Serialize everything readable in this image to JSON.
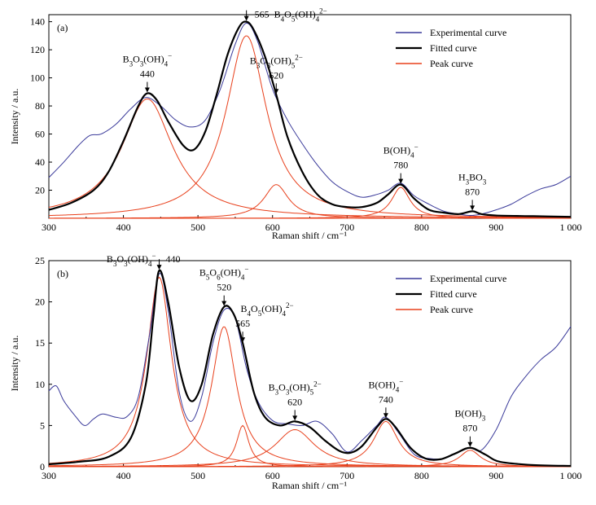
{
  "chart_data": [
    {
      "type": "line",
      "panel_label": "(a)",
      "xlabel": "Raman shift / cm⁻¹",
      "ylabel": "Intensity / a.u.",
      "xlim": [
        300,
        1000
      ],
      "ylim": [
        0,
        145
      ],
      "xticks": [
        300,
        400,
        500,
        600,
        700,
        800,
        900,
        1000
      ],
      "xtick_labels": [
        "300",
        "400",
        "500",
        "600",
        "700",
        "800",
        "900",
        "1 000"
      ],
      "yticks": [
        20,
        40,
        60,
        80,
        100,
        120,
        140
      ],
      "ytick_labels": [
        "20",
        "40",
        "60",
        "80",
        "100",
        "120",
        "140"
      ],
      "legend": {
        "position": "top-right",
        "entries": [
          {
            "label": "Experimental curve",
            "color": "#3a3a9a"
          },
          {
            "label": "Fitted curve",
            "color": "#000000"
          },
          {
            "label": "Peak curve",
            "color": "#e8401c"
          }
        ]
      },
      "peaks": [
        {
          "center": 432,
          "height": 85,
          "width": 42
        },
        {
          "center": 565,
          "height": 130,
          "width": 33
        },
        {
          "center": 605,
          "height": 24,
          "width": 20
        },
        {
          "center": 772,
          "height": 22,
          "width": 15
        },
        {
          "center": 868,
          "height": 2,
          "width": 4
        }
      ],
      "series": [
        {
          "name": "Experimental curve",
          "color": "#3a3a9a",
          "x": [
            300,
            320,
            340,
            355,
            370,
            390,
            410,
            430,
            450,
            470,
            490,
            510,
            530,
            550,
            565,
            580,
            600,
            620,
            640,
            660,
            680,
            700,
            720,
            740,
            755,
            772,
            790,
            810,
            830,
            850,
            865,
            880,
            900,
            920,
            940,
            960,
            980,
            1000
          ],
          "y": [
            29,
            40,
            52,
            59,
            60,
            67,
            78,
            86,
            80,
            70,
            65,
            70,
            92,
            124,
            139,
            126,
            92,
            70,
            53,
            38,
            26,
            19,
            15,
            17,
            20,
            25,
            16,
            10,
            5,
            3,
            2,
            3,
            6,
            10,
            16,
            21,
            24,
            30
          ]
        },
        {
          "name": "Fitted curve",
          "color": "#000000",
          "x": [
            300,
            330,
            360,
            380,
            400,
            420,
            432,
            445,
            460,
            480,
            495,
            510,
            525,
            540,
            555,
            565,
            575,
            590,
            605,
            620,
            640,
            660,
            680,
            700,
            720,
            740,
            755,
            772,
            790,
            810,
            830,
            850,
            868,
            880,
            900,
            950,
            1000
          ],
          "y": [
            6,
            11,
            20,
            33,
            55,
            80,
            89,
            84,
            69,
            52,
            49,
            62,
            88,
            117,
            136,
            140,
            134,
            115,
            88,
            58,
            33,
            17,
            10,
            8,
            8,
            11,
            17,
            24,
            14,
            6,
            4,
            3,
            5,
            3,
            2,
            1.5,
            1
          ]
        },
        {
          "name": "Peak curve",
          "color": "#e8401c",
          "is_group": true,
          "components": [
            "p1",
            "p2",
            "p3",
            "p4",
            "p5"
          ]
        }
      ],
      "annotations": [
        {
          "species_html": "B<tspan baseline-shift='sub' font-size='9'>3</tspan>O<tspan baseline-shift='sub' font-size='9'>3</tspan>(OH)<tspan baseline-shift='sub' font-size='9'>4</tspan><tspan baseline-shift='super' font-size='9'>−</tspan>",
          "species": "B3O3(OH)4−",
          "value": "440",
          "x": 432,
          "y": 89
        },
        {
          "species": "B4O5(OH)4 2−",
          "value": "565",
          "x": 565,
          "y": 140
        },
        {
          "species": "B3O3(OH)5 2−",
          "value": "620",
          "x": 605,
          "y": 88
        },
        {
          "species": "B(OH)4−",
          "value": "780",
          "x": 772,
          "y": 24
        },
        {
          "species": "H3BO3",
          "value": "870",
          "x": 868,
          "y": 5
        }
      ]
    },
    {
      "type": "line",
      "panel_label": "(b)",
      "xlabel": "Raman shift / cm⁻¹",
      "ylabel": "Intensity / a.u.",
      "xlim": [
        300,
        1000
      ],
      "ylim": [
        0,
        25
      ],
      "xticks": [
        300,
        400,
        500,
        600,
        700,
        800,
        900,
        1000
      ],
      "xtick_labels": [
        "300",
        "400",
        "500",
        "600",
        "700",
        "800",
        "900",
        "1 000"
      ],
      "yticks": [
        0,
        5,
        10,
        15,
        20,
        25
      ],
      "ytick_labels": [
        "0",
        "5",
        "10",
        "15",
        "20",
        "25"
      ],
      "legend": {
        "position": "top-right",
        "entries": [
          {
            "label": "Experimental curve",
            "color": "#3a3a9a"
          },
          {
            "label": "Fitted curve",
            "color": "#000000"
          },
          {
            "label": "Peak curve",
            "color": "#e8401c"
          }
        ]
      },
      "peaks": [
        {
          "center": 448,
          "height": 23,
          "width": 20
        },
        {
          "center": 535,
          "height": 17,
          "width": 20
        },
        {
          "center": 560,
          "height": 5,
          "width": 10
        },
        {
          "center": 630,
          "height": 4.5,
          "width": 32
        },
        {
          "center": 752,
          "height": 5.5,
          "width": 20
        },
        {
          "center": 865,
          "height": 2,
          "width": 17
        }
      ],
      "series": [
        {
          "name": "Experimental curve",
          "color": "#3a3a9a",
          "x": [
            300,
            310,
            320,
            335,
            348,
            360,
            372,
            390,
            405,
            420,
            435,
            448,
            460,
            475,
            490,
            505,
            520,
            535,
            550,
            565,
            580,
            600,
            620,
            640,
            660,
            680,
            700,
            720,
            740,
            752,
            770,
            790,
            810,
            830,
            850,
            865,
            880,
            900,
            920,
            940,
            960,
            980,
            1000
          ],
          "y": [
            9.2,
            9.8,
            8.0,
            6.2,
            5.0,
            5.8,
            6.4,
            6.0,
            6.1,
            8.5,
            16.0,
            23.4,
            19.0,
            9.0,
            5.5,
            8.5,
            15.0,
            19.0,
            18.0,
            12.0,
            8.0,
            5.6,
            5.2,
            5.0,
            5.5,
            4.0,
            1.8,
            3.2,
            5.0,
            6.0,
            4.0,
            1.5,
            1.0,
            1.0,
            1.8,
            2.3,
            2.0,
            4.5,
            8.5,
            11.0,
            13.0,
            14.5,
            17.0
          ]
        },
        {
          "name": "Fitted curve",
          "color": "#000000",
          "x": [
            300,
            340,
            380,
            410,
            430,
            440,
            448,
            460,
            475,
            490,
            505,
            520,
            535,
            548,
            560,
            575,
            590,
            610,
            630,
            650,
            670,
            690,
            705,
            720,
            740,
            752,
            765,
            785,
            805,
            825,
            845,
            865,
            885,
            905,
            950,
            1000
          ],
          "y": [
            0.3,
            0.6,
            1.2,
            3.5,
            10.0,
            18.0,
            23.8,
            20.0,
            12.0,
            8.0,
            10.0,
            16.0,
            19.4,
            18.5,
            15.0,
            9.0,
            6.0,
            5.0,
            5.5,
            4.8,
            3.2,
            1.9,
            1.7,
            2.5,
            4.8,
            5.8,
            4.8,
            2.3,
            1.0,
            0.9,
            1.6,
            2.3,
            1.5,
            0.6,
            0.2,
            0.1
          ]
        },
        {
          "name": "Peak curve",
          "color": "#e8401c",
          "is_group": true,
          "components": [
            "p1",
            "p2",
            "p3",
            "p4",
            "p5",
            "p6"
          ]
        }
      ],
      "annotations": [
        {
          "species": "B3O3(OH)4−",
          "value": "440",
          "x": 448,
          "y": 23.8
        },
        {
          "species": "B5O6(OH)4−",
          "value": "520",
          "x": 535,
          "y": 19.4
        },
        {
          "species": "B4O5(OH)4 2−",
          "value": "565",
          "x": 560,
          "y": 15.0
        },
        {
          "species": "B3O3(OH)5 2−",
          "value": "620",
          "x": 630,
          "y": 5.5
        },
        {
          "species": "B(OH)4−",
          "value": "740",
          "x": 752,
          "y": 5.8
        },
        {
          "species": "B(OH)3",
          "value": "870",
          "x": 865,
          "y": 2.3
        }
      ]
    }
  ]
}
